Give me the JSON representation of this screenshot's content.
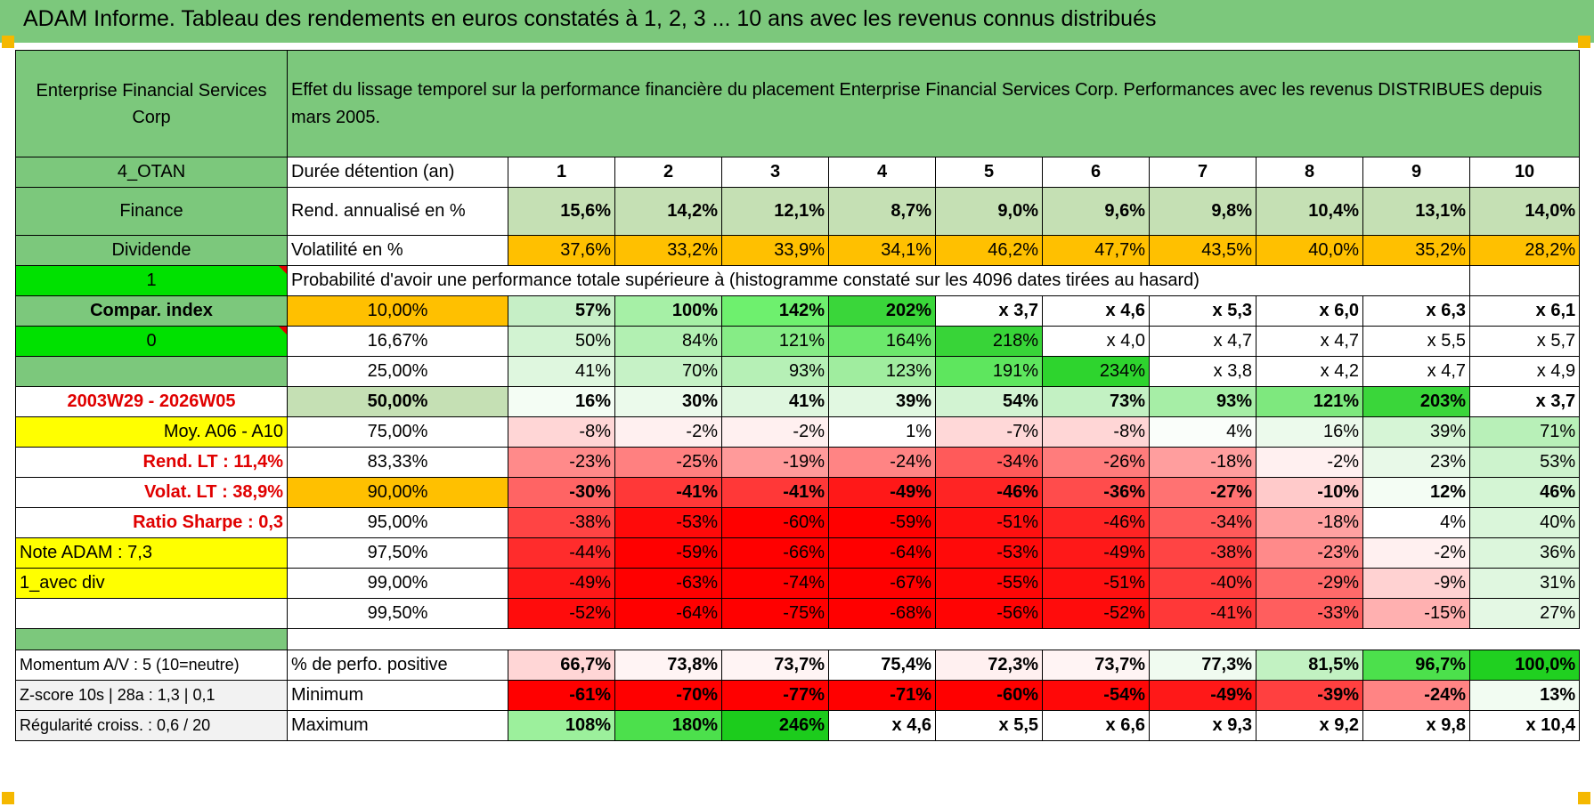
{
  "title": "ADAM Informe. Tableau des rendements en euros constatés à 1, 2, 3 ... 10 ans avec les revenus connus distribués",
  "header": {
    "company": "Enterprise Financial Services Corp",
    "description": "Effet du lissage temporel sur la performance financière du placement Enterprise Financial Services Corp. Performances avec les revenus DISTRIBUES depuis mars 2005."
  },
  "left_labels": {
    "code": "4_OTAN",
    "sector": "Finance",
    "type": "Dividende",
    "flag1": "1",
    "compar": "Compar. index",
    "flag0": "0",
    "period": "2003W29 - 2026W05",
    "moy": "Moy. A06 - A10",
    "rend_lt": "Rend. LT :    11,4%",
    "volat_lt": "Volat. LT :    38,9%",
    "sharpe": "Ratio Sharpe :    0,3",
    "note": "Note ADAM : 7,3",
    "avec_div": "1_avec div",
    "momentum": "Momentum A/V : 5 (10=neutre)",
    "zscore": "Z-score 10s | 28a : 1,3 | 0,1",
    "regularite": "Régularité croiss. : 0,6 / 20"
  },
  "rows": {
    "duree": {
      "label": "Durée détention (an)",
      "values": [
        "1",
        "2",
        "3",
        "4",
        "5",
        "6",
        "7",
        "8",
        "9",
        "10"
      ]
    },
    "rend": {
      "label": "Rend. annualisé en %",
      "values": [
        "15,6%",
        "14,2%",
        "12,1%",
        "8,7%",
        "9,0%",
        "9,6%",
        "9,8%",
        "10,4%",
        "13,1%",
        "14,0%"
      ]
    },
    "vol": {
      "label": "Volatilité en %",
      "values": [
        "37,6%",
        "33,2%",
        "33,9%",
        "34,1%",
        "46,2%",
        "47,7%",
        "43,5%",
        "40,0%",
        "35,2%",
        "28,2%"
      ]
    },
    "proba_title": "Probabilité d'avoir une performance totale supérieure à (histogramme constaté sur les 4096 dates tirées au hasard)",
    "quantiles": [
      {
        "pct": "10,00%",
        "values": [
          "57%",
          "100%",
          "142%",
          "202%",
          "x 3,7",
          "x 4,6",
          "x 5,3",
          "x 6,0",
          "x 6,3",
          "x 6,1"
        ],
        "colors": [
          "#c6efc6",
          "#a6f0a6",
          "#6ef06e",
          "#3ad63a",
          "#ffffff",
          "#ffffff",
          "#ffffff",
          "#ffffff",
          "#ffffff",
          "#ffffff"
        ]
      },
      {
        "pct": "16,67%",
        "values": [
          "50%",
          "84%",
          "121%",
          "164%",
          "218%",
          "x 4,0",
          "x 4,7",
          "x 4,7",
          "x 5,5",
          "x 5,7"
        ],
        "colors": [
          "#d2f3d2",
          "#b2f0b2",
          "#86ec86",
          "#6ce86c",
          "#38d438",
          "#ffffff",
          "#ffffff",
          "#ffffff",
          "#ffffff",
          "#ffffff"
        ]
      },
      {
        "pct": "25,00%",
        "values": [
          "41%",
          "70%",
          "93%",
          "123%",
          "191%",
          "234%",
          "x 3,8",
          "x 4,2",
          "x 4,7",
          "x 4,9"
        ],
        "colors": [
          "#dff7df",
          "#c6f2c6",
          "#b6f0b6",
          "#a0ed9f",
          "#5ee65e",
          "#2ed42e",
          "#ffffff",
          "#ffffff",
          "#ffffff",
          "#ffffff"
        ]
      },
      {
        "pct": "50,00%",
        "values": [
          "16%",
          "30%",
          "41%",
          "39%",
          "54%",
          "73%",
          "93%",
          "121%",
          "203%",
          "x 3,7"
        ],
        "colors": [
          "#f4fdf4",
          "#ebfaeb",
          "#dff7df",
          "#e1f8e1",
          "#d2f3d2",
          "#c3f1c3",
          "#a6ee a6",
          "#7ee87e",
          "#3ad63a",
          "#ffffff"
        ]
      },
      {
        "pct": "75,00%",
        "values": [
          "-8%",
          "-2%",
          "-2%",
          "1%",
          "-7%",
          "-8%",
          "4%",
          "16%",
          "39%",
          "71%"
        ],
        "colors": [
          "#ffd6d6",
          "#fff0f0",
          "#fff0f0",
          "#ffffff",
          "#ffd8d8",
          "#ffd6d6",
          "#fafefa",
          "#ecfaec",
          "#d6f5d6",
          "#b8f0b8"
        ]
      },
      {
        "pct": "83,33%",
        "values": [
          "-23%",
          "-25%",
          "-19%",
          "-24%",
          "-34%",
          "-26%",
          "-18%",
          "-2%",
          "23%",
          "53%"
        ],
        "colors": [
          "#ff8a8a",
          "#ff8080",
          "#ff9a9a",
          "#ff8484",
          "#ff5a5a",
          "#ff7c7c",
          "#ff9e9e",
          "#fff0f0",
          "#e8f9e8",
          "#cdf3cd"
        ]
      },
      {
        "pct": "90,00%",
        "values": [
          "-30%",
          "-41%",
          "-41%",
          "-49%",
          "-46%",
          "-36%",
          "-27%",
          "-10%",
          "12%",
          "46%"
        ],
        "colors": [
          "#ff6464",
          "#ff3838",
          "#ff3838",
          "#ff1818",
          "#ff2424",
          "#ff4c4c",
          "#ff7272",
          "#ffcaca",
          "#f4fdf4",
          "#d4f5d4"
        ]
      },
      {
        "pct": "95,00%",
        "values": [
          "-38%",
          "-53%",
          "-60%",
          "-59%",
          "-51%",
          "-46%",
          "-34%",
          "-18%",
          "4%",
          "40%"
        ],
        "colors": [
          "#ff4444",
          "#ff0a0a",
          "#ff0000",
          "#ff0000",
          "#ff1010",
          "#ff2424",
          "#ff5a5a",
          "#ffa2a2",
          "#ffffff",
          "#daf6da"
        ]
      },
      {
        "pct": "97,50%",
        "values": [
          "-44%",
          "-59%",
          "-66%",
          "-64%",
          "-53%",
          "-49%",
          "-38%",
          "-23%",
          "-2%",
          "36%"
        ],
        "colors": [
          "#ff2c2c",
          "#ff0000",
          "#ff0000",
          "#ff0000",
          "#ff0a0a",
          "#ff1818",
          "#ff4444",
          "#ff8a8a",
          "#fff0f0",
          "#dcf6dc"
        ]
      },
      {
        "pct": "99,00%",
        "values": [
          "-49%",
          "-63%",
          "-74%",
          "-67%",
          "-55%",
          "-51%",
          "-40%",
          "-29%",
          "-9%",
          "31%"
        ],
        "colors": [
          "#ff1818",
          "#ff0000",
          "#ff0000",
          "#ff0000",
          "#ff0606",
          "#ff1010",
          "#ff3c3c",
          "#ff6a6a",
          "#ffd2d2",
          "#e0f7e0"
        ]
      },
      {
        "pct": "99,50%",
        "values": [
          "-52%",
          "-64%",
          "-75%",
          "-68%",
          "-56%",
          "-52%",
          "-41%",
          "-33%",
          "-15%",
          "27%"
        ],
        "colors": [
          "#ff0c0c",
          "#ff0000",
          "#ff0000",
          "#ff0000",
          "#ff0404",
          "#ff0c0c",
          "#ff3838",
          "#ff5e5e",
          "#ffb0b0",
          "#e4f8e4"
        ]
      }
    ],
    "positive": {
      "label": "% de perfo. positive",
      "values": [
        "66,7%",
        "73,8%",
        "73,7%",
        "75,4%",
        "72,3%",
        "73,7%",
        "77,3%",
        "81,5%",
        "96,7%",
        "100,0%"
      ],
      "colors": [
        "#ffd6d6",
        "#fff4f4",
        "#fff4f4",
        "#ffffff",
        "#fff0f0",
        "#fff4f4",
        "#f0fbf0",
        "#c2f2c2",
        "#4ce04c",
        "#20d020"
      ]
    },
    "minimum": {
      "label": "Minimum",
      "values": [
        "-61%",
        "-70%",
        "-77%",
        "-71%",
        "-60%",
        "-54%",
        "-49%",
        "-39%",
        "-24%",
        "13%"
      ],
      "colors": [
        "#ff0000",
        "#ff0000",
        "#ff0000",
        "#ff0000",
        "#ff0000",
        "#ff0808",
        "#ff1818",
        "#ff4040",
        "#ff8484",
        "#f2fcf2"
      ]
    },
    "maximum": {
      "label": "Maximum",
      "values": [
        "108%",
        "180%",
        "246%",
        "x 4,6",
        "x 5,5",
        "x 6,6",
        "x 9,3",
        "x 9,2",
        "x 9,8",
        "x 10,4"
      ],
      "colors": [
        "#9cf09c",
        "#4ce04c",
        "#1ccc1c",
        "#ffffff",
        "#ffffff",
        "#ffffff",
        "#ffffff",
        "#ffffff",
        "#ffffff",
        "#ffffff"
      ]
    }
  },
  "colors": {
    "green": "#7cc87c",
    "light_green": "#c5e0b4",
    "yellow": "#ffff00",
    "orange": "#ffc000",
    "bright_green": "#00e100",
    "red_text": "#e00000"
  }
}
